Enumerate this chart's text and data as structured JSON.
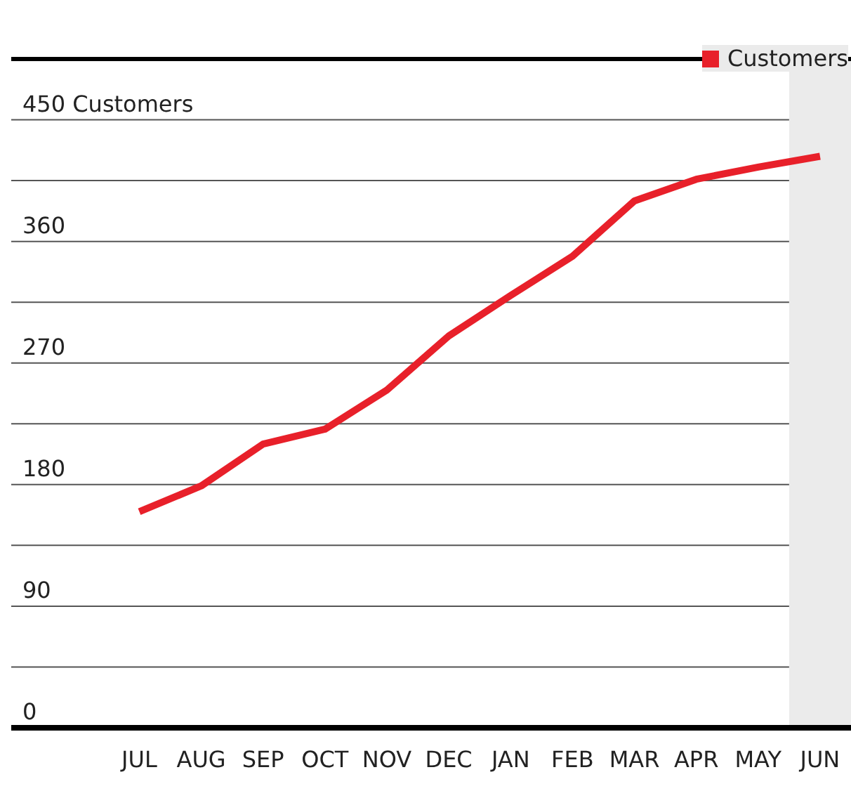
{
  "chart_data": {
    "type": "line",
    "categories": [
      "JUL",
      "AUG",
      "SEP",
      "OCT",
      "NOV",
      "DEC",
      "JAN",
      "FEB",
      "MAR",
      "APR",
      "MAY",
      "JUN"
    ],
    "series": [
      {
        "name": "Customers",
        "color": "#e8202a",
        "values": [
          160,
          179,
          210,
          221,
          250,
          290,
          320,
          349,
          390,
          406,
          415,
          423
        ]
      }
    ],
    "ylim": [
      0,
      495
    ],
    "yticks": [
      0,
      {
        "value": 45,
        "label": null
      },
      90,
      {
        "value": 135,
        "label": null
      },
      180,
      {
        "value": 225,
        "label": null
      },
      270,
      {
        "value": 315,
        "label": null
      },
      360,
      {
        "value": 405,
        "label": null
      },
      {
        "value": 450,
        "label": "450 Customers"
      }
    ],
    "grid": "y",
    "legend": "top right",
    "marker": "none",
    "line_style": "solid",
    "bands": [
      {
        "axis": "x",
        "from": "JUN",
        "to": "JUN",
        "color": "#ebebeb"
      }
    ]
  }
}
